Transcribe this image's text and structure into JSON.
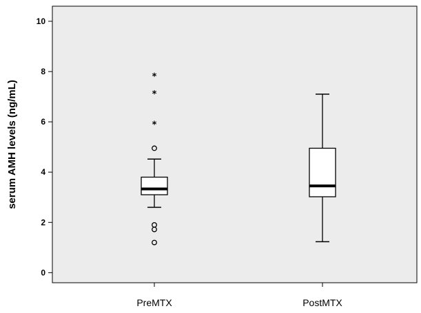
{
  "chart_data": {
    "type": "boxplot",
    "title": "",
    "xlabel": "",
    "ylabel": "serum AMH levels (ng/mL)",
    "ylim": [
      -0.4,
      10.6
    ],
    "yticks": [
      0,
      2,
      4,
      6,
      8,
      10
    ],
    "ytick_labels": [
      "0",
      "2",
      "4",
      "6",
      "8",
      "10"
    ],
    "grid": false,
    "categories": [
      "PreMTX",
      "PostMTX"
    ],
    "series": [
      {
        "category": "PreMTX",
        "whisker_low": 2.6,
        "q1": 3.1,
        "median": 3.33,
        "q3": 3.8,
        "whisker_high": 4.52,
        "outliers_circle": [
          4.95,
          1.9,
          1.72,
          1.2
        ],
        "outliers_star": [
          7.85,
          7.15,
          5.93
        ]
      },
      {
        "category": "PostMTX",
        "whisker_low": 1.23,
        "q1": 3.02,
        "median": 3.45,
        "q3": 4.95,
        "whisker_high": 7.1,
        "outliers_circle": [],
        "outliers_star": []
      }
    ],
    "colors": {
      "plot_background": "#ececec",
      "box_fill": "#ffffff",
      "line": "#000000"
    }
  }
}
